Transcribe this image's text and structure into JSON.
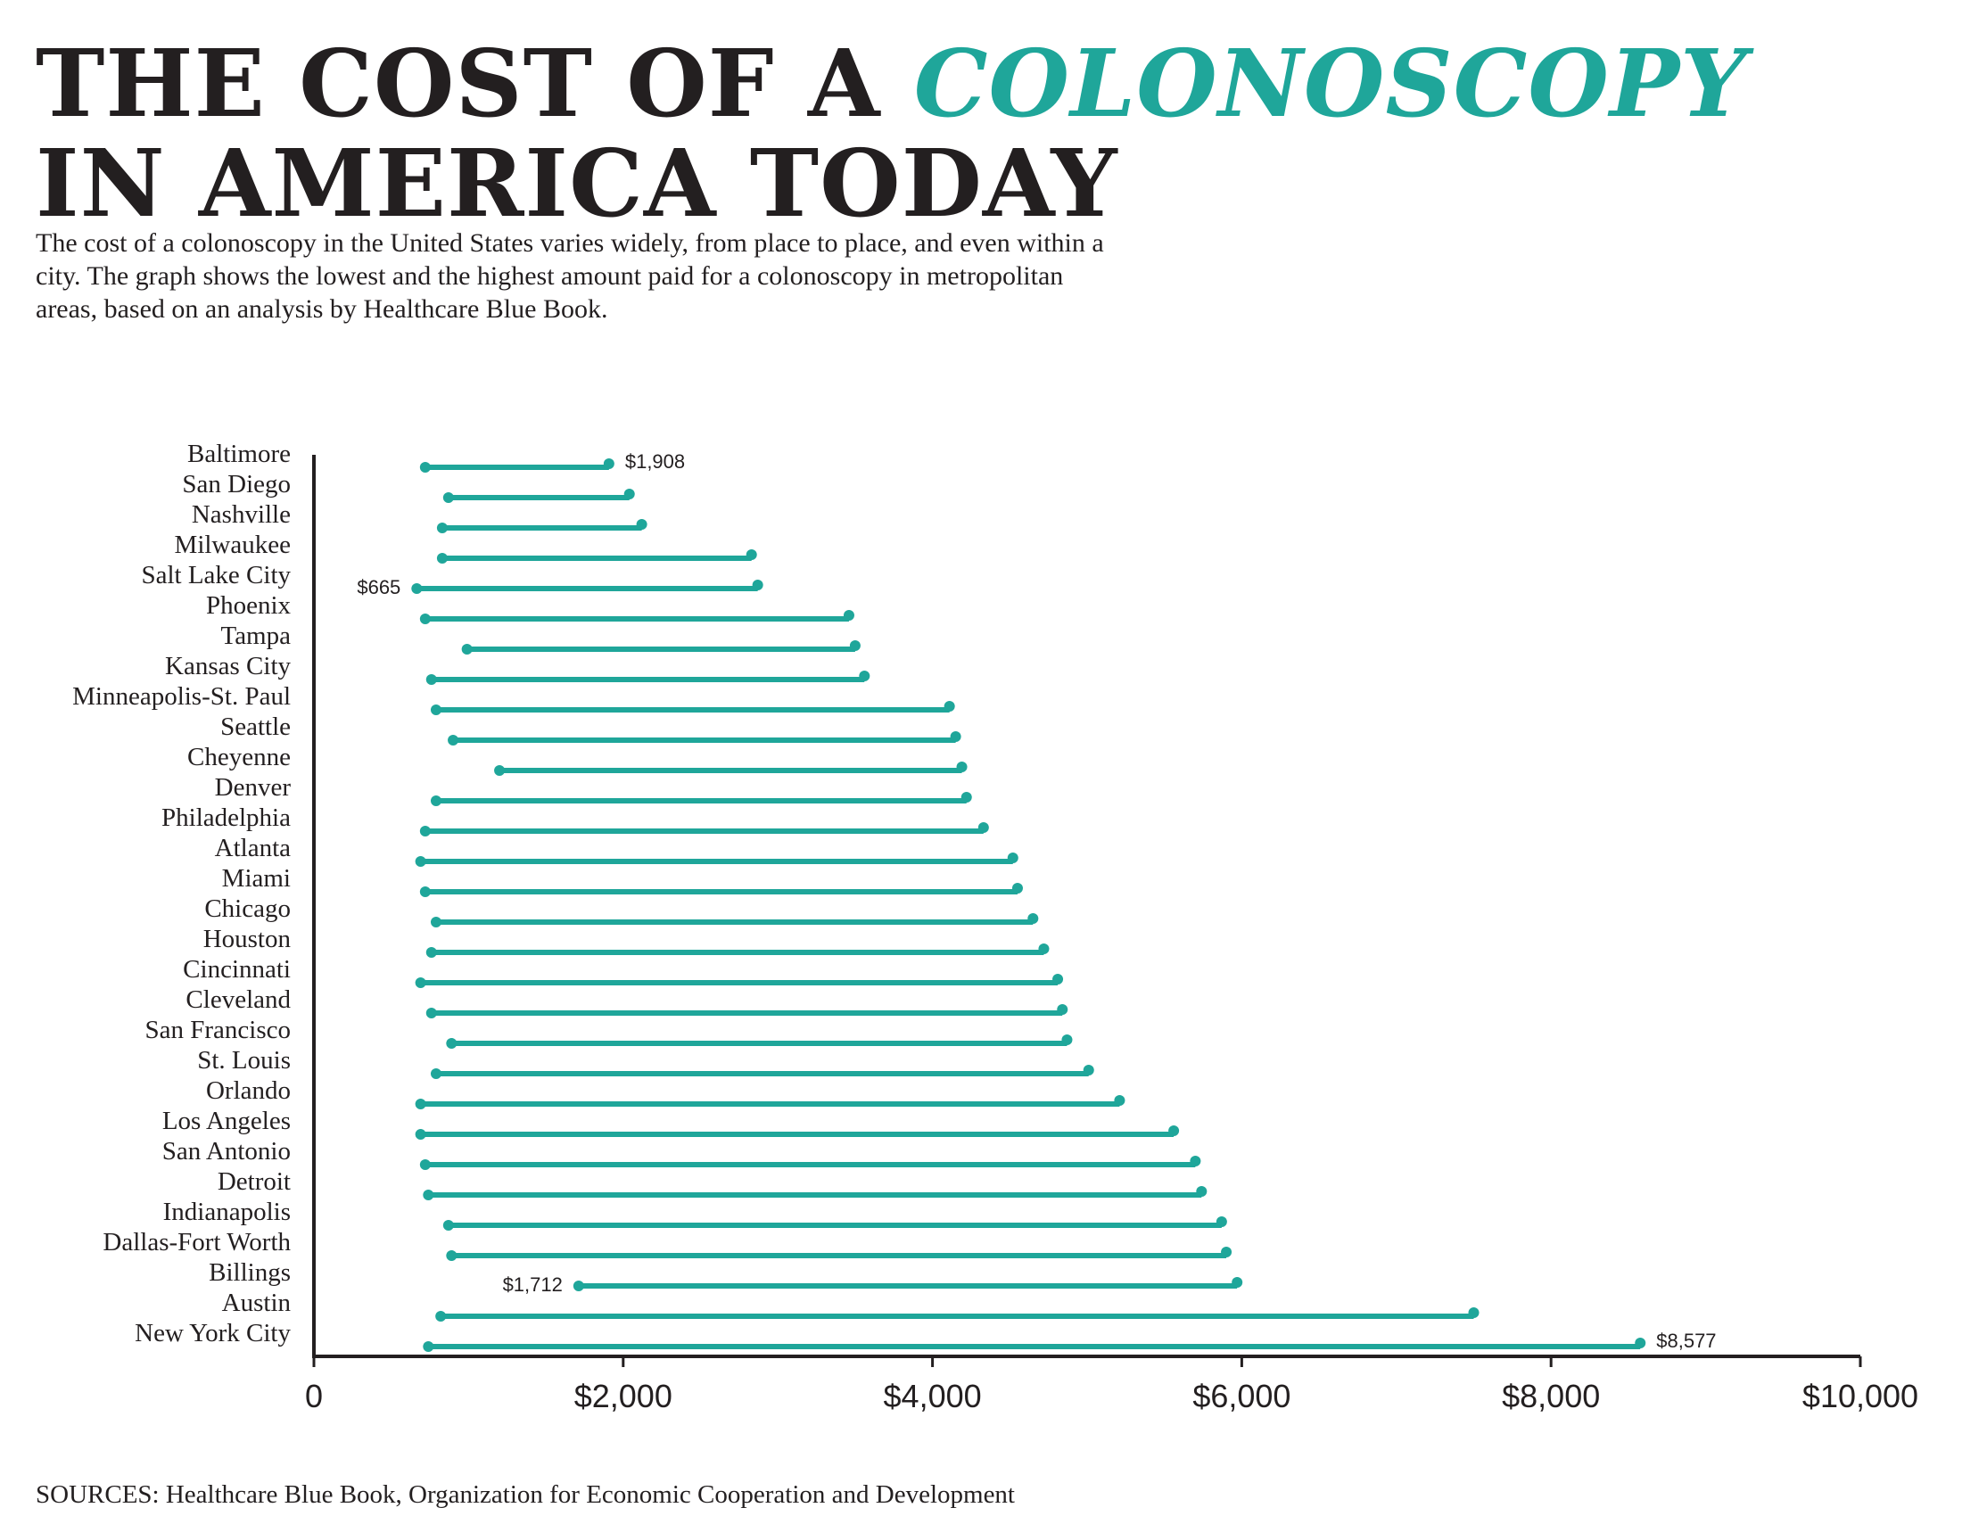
{
  "header": {
    "title_line1": "THE COST OF A",
    "title_accent": "COLONOSCOPY",
    "title_line2": "IN AMERICA TODAY",
    "subtitle": "The cost of a colonoscopy in the United States varies widely, from place to place, and even within a city. The graph shows the lowest and the highest amount paid for a colonoscopy in metropolitan areas, based on an analysis by Healthcare Blue Book."
  },
  "footer": {
    "source": "SOURCES: Healthcare Blue Book, Organization for Economic Cooperation and Development"
  },
  "colors": {
    "accent": "#1fa69a",
    "text": "#231f20"
  },
  "chart_data": {
    "type": "dumbbell",
    "title": "THE COST OF A COLONOSCOPY IN AMERICA TODAY",
    "xlabel": "",
    "ylabel": "",
    "xlim": [
      0,
      10000
    ],
    "x_ticks": [
      {
        "value": 0,
        "label": "0"
      },
      {
        "value": 2000,
        "label": "$2,000"
      },
      {
        "value": 4000,
        "label": "$4,000"
      },
      {
        "value": 6000,
        "label": "$6,000"
      },
      {
        "value": 8000,
        "label": "$8,000"
      },
      {
        "value": 10000,
        "label": "$10,000"
      }
    ],
    "grid": false,
    "rows": [
      {
        "city": "Baltimore",
        "low": 720,
        "high": 1908,
        "high_label": "$1,908"
      },
      {
        "city": "San Diego",
        "low": 870,
        "high": 2040
      },
      {
        "city": "Nashville",
        "low": 830,
        "high": 2120
      },
      {
        "city": "Milwaukee",
        "low": 830,
        "high": 2830
      },
      {
        "city": "Salt Lake City",
        "low": 665,
        "high": 2870,
        "low_label": "$665"
      },
      {
        "city": "Phoenix",
        "low": 720,
        "high": 3460
      },
      {
        "city": "Tampa",
        "low": 990,
        "high": 3500
      },
      {
        "city": "Kansas City",
        "low": 760,
        "high": 3560
      },
      {
        "city": "Minneapolis-St. Paul",
        "low": 790,
        "high": 4110
      },
      {
        "city": "Seattle",
        "low": 900,
        "high": 4150
      },
      {
        "city": "Cheyenne",
        "low": 1200,
        "high": 4190
      },
      {
        "city": "Denver",
        "low": 790,
        "high": 4220
      },
      {
        "city": "Philadelphia",
        "low": 720,
        "high": 4330
      },
      {
        "city": "Atlanta",
        "low": 690,
        "high": 4520
      },
      {
        "city": "Miami",
        "low": 720,
        "high": 4550
      },
      {
        "city": "Chicago",
        "low": 790,
        "high": 4650
      },
      {
        "city": "Houston",
        "low": 760,
        "high": 4720
      },
      {
        "city": "Cincinnati",
        "low": 690,
        "high": 4810
      },
      {
        "city": "Cleveland",
        "low": 760,
        "high": 4840
      },
      {
        "city": "San Francisco",
        "low": 890,
        "high": 4870
      },
      {
        "city": "St. Louis",
        "low": 790,
        "high": 5010
      },
      {
        "city": "Orlando",
        "low": 690,
        "high": 5210
      },
      {
        "city": "Los Angeles",
        "low": 690,
        "high": 5560
      },
      {
        "city": "San Antonio",
        "low": 720,
        "high": 5700
      },
      {
        "city": "Detroit",
        "low": 740,
        "high": 5740
      },
      {
        "city": "Indianapolis",
        "low": 870,
        "high": 5870
      },
      {
        "city": "Dallas-Fort Worth",
        "low": 890,
        "high": 5900
      },
      {
        "city": "Billings",
        "low": 1712,
        "high": 5970,
        "low_label": "$1,712"
      },
      {
        "city": "Austin",
        "low": 820,
        "high": 7500
      },
      {
        "city": "New York City",
        "low": 740,
        "high": 8577,
        "high_label": "$8,577"
      }
    ]
  }
}
